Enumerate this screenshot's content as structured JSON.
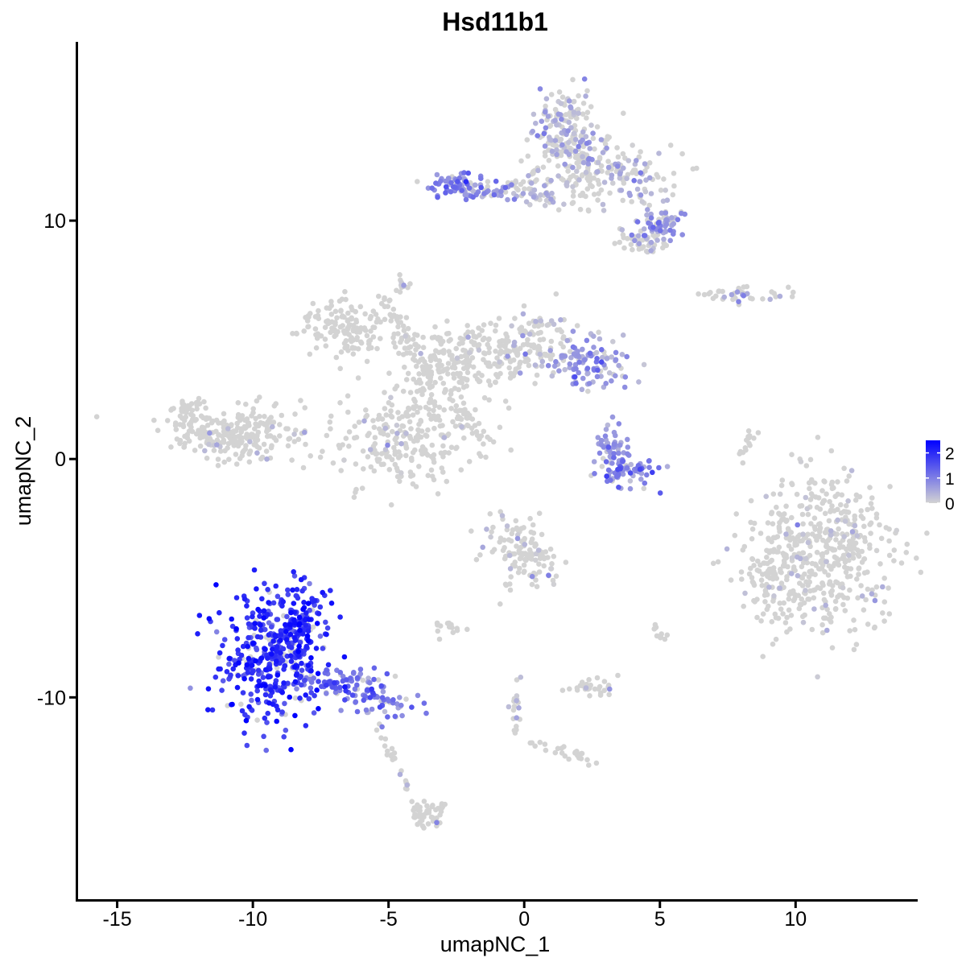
{
  "chart_data": {
    "type": "scatter",
    "title": "Hsd11b1",
    "xlabel": "umapNC_1",
    "ylabel": "umapNC_2",
    "xlim": [
      -16.5,
      14.5
    ],
    "ylim": [
      -18.5,
      17.5
    ],
    "x_ticks": [
      -15,
      -10,
      -5,
      0,
      5,
      10
    ],
    "y_ticks": [
      -10,
      0,
      10
    ],
    "x_tick_labels": [
      "-15",
      "-10",
      "-5",
      "0",
      "5",
      "10"
    ],
    "y_tick_labels": [
      "-10",
      "0",
      "10"
    ],
    "grid": false,
    "color_scale": {
      "low_color": "#d3d3d3",
      "high_color": "#0000ff",
      "min": 0,
      "max": 2.5,
      "tick_values": [
        2,
        1,
        0
      ],
      "tick_labels": [
        "2",
        "1",
        "0"
      ]
    },
    "legend_position": "right",
    "clusters": [
      {
        "cx": -10.3,
        "cy": 1.0,
        "sx": 1.3,
        "sy": 0.55,
        "n": 240,
        "expr": 0.05
      },
      {
        "cx": -12.3,
        "cy": 1.8,
        "sx": 0.4,
        "sy": 0.4,
        "n": 50,
        "expr": 0.05
      },
      {
        "cx": -6.5,
        "cy": 5.5,
        "sx": 0.9,
        "sy": 0.6,
        "n": 140,
        "expr": 0.0
      },
      {
        "cx": -4.3,
        "cy": 0.7,
        "sx": 1.2,
        "sy": 0.9,
        "n": 220,
        "expr": 0.08
      },
      {
        "cx": -3.3,
        "cy": 3.5,
        "sx": 0.9,
        "sy": 1.0,
        "n": 130,
        "expr": 0.02
      },
      {
        "cx": -1.5,
        "cy": 4.5,
        "sx": 1.2,
        "sy": 0.7,
        "n": 160,
        "expr": 0.03
      },
      {
        "cx": 0.5,
        "cy": 5.0,
        "sx": 0.8,
        "sy": 0.6,
        "n": 90,
        "expr": 0.3
      },
      {
        "cx": 2.3,
        "cy": 4.0,
        "sx": 0.8,
        "sy": 0.5,
        "n": 110,
        "expr": 0.65
      },
      {
        "cx": -4.5,
        "cy": 7.3,
        "sx": 0.15,
        "sy": 0.15,
        "n": 12,
        "expr": 0.5
      },
      {
        "cx": 1.5,
        "cy": 14.0,
        "sx": 0.5,
        "sy": 0.8,
        "n": 110,
        "expr": 0.35
      },
      {
        "cx": 2.0,
        "cy": 12.5,
        "sx": 0.9,
        "sy": 0.8,
        "n": 120,
        "expr": 0.3
      },
      {
        "cx": 4.0,
        "cy": 12.0,
        "sx": 0.9,
        "sy": 0.6,
        "n": 100,
        "expr": 0.4
      },
      {
        "cx": 5.0,
        "cy": 9.8,
        "sx": 0.5,
        "sy": 0.4,
        "n": 70,
        "expr": 0.6
      },
      {
        "cx": 4.5,
        "cy": 9.2,
        "sx": 0.5,
        "sy": 0.4,
        "n": 40,
        "expr": 0.2
      },
      {
        "cx": -2.5,
        "cy": 11.5,
        "sx": 0.45,
        "sy": 0.3,
        "n": 60,
        "expr": 0.9
      },
      {
        "cx": -1.0,
        "cy": 11.2,
        "sx": 0.9,
        "sy": 0.2,
        "n": 40,
        "expr": 0.5
      },
      {
        "cx": 0.5,
        "cy": 11.0,
        "sx": 0.5,
        "sy": 0.3,
        "n": 30,
        "expr": 0.4
      },
      {
        "cx": 3.7,
        "cy": -0.5,
        "sx": 0.55,
        "sy": 0.3,
        "n": 65,
        "expr": 1.0
      },
      {
        "cx": 3.2,
        "cy": 0.4,
        "sx": 0.3,
        "sy": 0.35,
        "n": 35,
        "expr": 0.7
      },
      {
        "cx": -0.3,
        "cy": -3.5,
        "sx": 0.6,
        "sy": 0.6,
        "n": 80,
        "expr": 0.15
      },
      {
        "cx": 0.7,
        "cy": -4.6,
        "sx": 0.4,
        "sy": 0.5,
        "n": 30,
        "expr": 0.2
      },
      {
        "cx": -9.3,
        "cy": -8.3,
        "sx": 0.9,
        "sy": 1.4,
        "n": 420,
        "expr": 1.85
      },
      {
        "cx": -8.2,
        "cy": -7.0,
        "sx": 0.4,
        "sy": 0.8,
        "n": 90,
        "expr": 2.0
      },
      {
        "cx": -6.5,
        "cy": -9.5,
        "sx": 0.8,
        "sy": 0.35,
        "n": 90,
        "expr": 1.2
      },
      {
        "cx": -5.0,
        "cy": -10.3,
        "sx": 0.6,
        "sy": 0.3,
        "n": 40,
        "expr": 0.9
      },
      {
        "cx": -3.5,
        "cy": -15.0,
        "sx": 0.35,
        "sy": 0.4,
        "n": 40,
        "expr": 0.05
      },
      {
        "cx": 11.0,
        "cy": -4.0,
        "sx": 1.3,
        "sy": 1.6,
        "n": 500,
        "expr": 0.1
      },
      {
        "cx": 9.0,
        "cy": -5.0,
        "sx": 0.4,
        "sy": 0.9,
        "n": 60,
        "expr": 0.05
      },
      {
        "cx": 2.5,
        "cy": -9.5,
        "sx": 0.5,
        "sy": 0.25,
        "n": 30,
        "expr": 0.1
      },
      {
        "cx": 8.0,
        "cy": 6.9,
        "sx": 0.9,
        "sy": 0.15,
        "n": 40,
        "expr": 0.2
      },
      {
        "cx": -2.8,
        "cy": -7.0,
        "sx": 0.3,
        "sy": 0.2,
        "n": 15,
        "expr": 0.1
      },
      {
        "cx": 4.9,
        "cy": -7.3,
        "sx": 0.2,
        "sy": 0.2,
        "n": 12,
        "expr": 0.1
      }
    ],
    "branches": [
      {
        "from": [
          -5.2,
          6.8
        ],
        "to": [
          -3.5,
          3.5
        ],
        "n": 40,
        "spread": 0.15,
        "expr": 0.0
      },
      {
        "from": [
          -2.5,
          2.2
        ],
        "to": [
          -1.3,
          0.8
        ],
        "n": 30,
        "spread": 0.15,
        "expr": 0.0
      },
      {
        "from": [
          -5.5,
          -11.0
        ],
        "to": [
          -3.8,
          -15.0
        ],
        "n": 30,
        "spread": 0.1,
        "expr": 0.05
      },
      {
        "from": [
          -0.3,
          -9.3
        ],
        "to": [
          -0.3,
          -11.5
        ],
        "n": 20,
        "spread": 0.1,
        "expr": 0.4
      },
      {
        "from": [
          0.0,
          -11.8
        ],
        "to": [
          2.5,
          -12.6
        ],
        "n": 25,
        "spread": 0.12,
        "expr": 0.05
      },
      {
        "from": [
          -1.0,
          -6.0
        ],
        "to": [
          0.3,
          -3.8
        ],
        "n": 20,
        "spread": 0.12,
        "expr": 0.05
      },
      {
        "from": [
          8.0,
          0.0
        ],
        "to": [
          8.5,
          1.2
        ],
        "n": 15,
        "spread": 0.1,
        "expr": 0.1
      },
      {
        "from": [
          1.0,
          12.5
        ],
        "to": [
          -0.8,
          11.2
        ],
        "n": 20,
        "spread": 0.15,
        "expr": 0.3
      },
      {
        "from": [
          2.5,
          10.0
        ],
        "to": [
          1.3,
          13.0
        ],
        "n": 20,
        "spread": 0.2,
        "expr": 0.2
      },
      {
        "from": [
          3.0,
          1.6
        ],
        "to": [
          3.7,
          -1.2
        ],
        "n": 20,
        "spread": 0.2,
        "expr": 0.6
      }
    ]
  }
}
